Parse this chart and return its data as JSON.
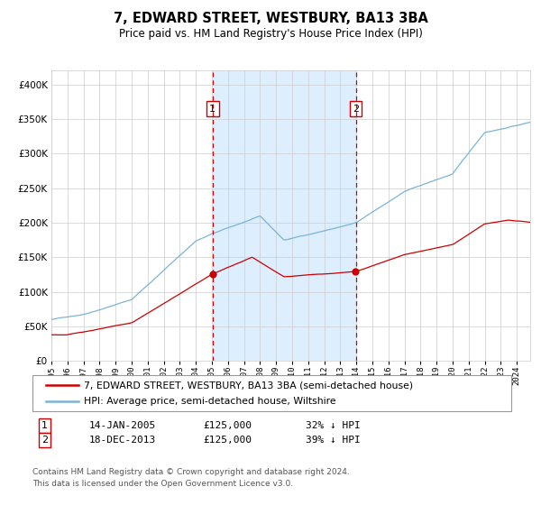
{
  "title": "7, EDWARD STREET, WESTBURY, BA13 3BA",
  "subtitle": "Price paid vs. HM Land Registry's House Price Index (HPI)",
  "legend_line1": "7, EDWARD STREET, WESTBURY, BA13 3BA (semi-detached house)",
  "legend_line2": "HPI: Average price, semi-detached house, Wiltshire",
  "footnote": "Contains HM Land Registry data © Crown copyright and database right 2024.\nThis data is licensed under the Open Government Licence v3.0.",
  "table_row1_num": "1",
  "table_row1_date": "14-JAN-2005",
  "table_row1_price": "£125,000",
  "table_row1_hpi": "32% ↓ HPI",
  "table_row2_num": "2",
  "table_row2_date": "18-DEC-2013",
  "table_row2_price": "£125,000",
  "table_row2_hpi": "39% ↓ HPI",
  "sale1_date_num": 2005.04,
  "sale1_price": 125000,
  "sale2_date_num": 2013.96,
  "sale2_price": 125000,
  "hpi_color": "#7ab4d8",
  "hpi_fill_color": "#ddeeff",
  "price_color": "#cc0000",
  "vline_color": "#cc0000",
  "marker_color": "#cc0000",
  "grid_color": "#cccccc",
  "background_color": "#ffffff",
  "ylim_max": 420000,
  "xlim_min": 1995.0,
  "xlim_max": 2024.83
}
